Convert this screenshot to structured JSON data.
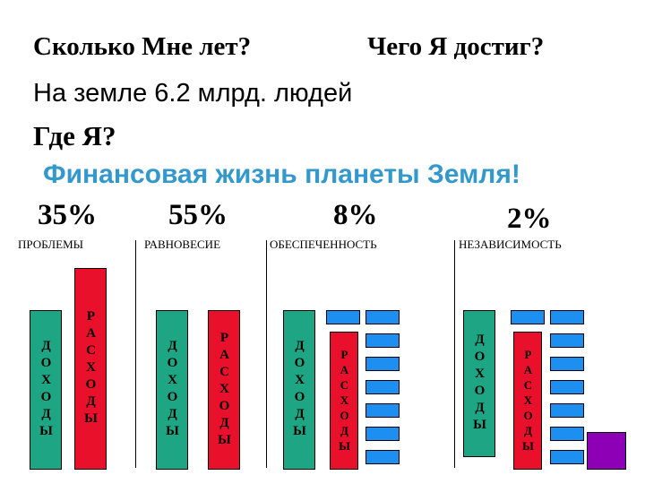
{
  "questions": {
    "age": "Сколько Мне лет?",
    "achieved": "Чего Я достиг?",
    "population": "На земле 6.2 млрд. людей",
    "where": "Где Я?"
  },
  "heading": "Финансовая жизнь планеты Земля!",
  "colors": {
    "heading": "#3399cc",
    "income": "#1ea684",
    "expenses": "#e8102a",
    "assets": "#1c8ff0",
    "surplus": "#8e00b5"
  },
  "columns": [
    {
      "percent": "35%",
      "label": "ПРОБЛЕМЫ",
      "income": "ДОХОДЫ",
      "expenses": "РАСХОДЫ"
    },
    {
      "percent": "55%",
      "label": "РАВНОВЕСИЕ",
      "income": "ДОХОДЫ",
      "expenses": "РАСХОДЫ"
    },
    {
      "percent": "8%",
      "label": "ОБЕСПЕЧЕННОСТЬ",
      "income": "ДОХОДЫ",
      "expenses": "РАСХОДЫ"
    },
    {
      "percent": "2%",
      "label": "НЕЗАВИСИМОСТЬ",
      "income": "ДОХОДЫ",
      "expenses": "РАСХОДЫ"
    }
  ]
}
